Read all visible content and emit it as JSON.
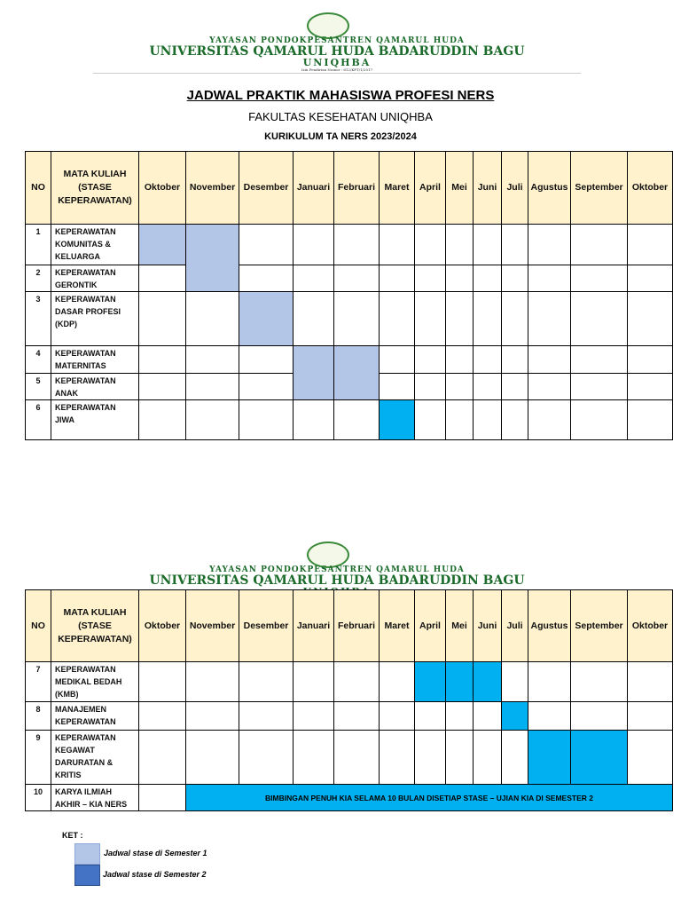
{
  "letterhead": {
    "foundation": "YAYASAN PONDOKPESANTREN QAMARUL HUDA",
    "university": "UNIVERSITAS QAMARUL HUDA BADARUDDIN BAGU",
    "short": "UNIQHBA",
    "permit": "Izin Pendirian Nomor : 612/KPT/1/2017"
  },
  "title": "JADWAL PRAKTIK MAHASISWA PROFESI NERS",
  "subtitle": "FAKULTAS KESEHATAN UNIQHBA",
  "curriculum": "KURIKULUM TA NERS 2023/2024",
  "colors": {
    "semester1": "#b4c6e7",
    "semester2": "#00b0f0",
    "legend_semester2": "#4472c4",
    "header_bg": "#fff2cc"
  },
  "table": {
    "headers": [
      "NO",
      "MATA KULIAH (STASE KEPERAWATAN)",
      "Oktober",
      "November",
      "Desember",
      "Januari",
      "Februari",
      "Maret",
      "April",
      "Mei",
      "Juni",
      "Juli",
      "Agustus",
      "September",
      "Oktober"
    ],
    "rows": [
      {
        "no": "1",
        "name": "KEPERAWATAN KOMUNITAS & KELUARGA",
        "months": [
          0,
          1
        ],
        "semester": 1
      },
      {
        "no": "2",
        "name": "KEPERAWATAN GERONTIK",
        "months": [
          1
        ],
        "semester": 1
      },
      {
        "no": "3",
        "name": "KEPERAWATAN DASAR PROFESI (KDP)",
        "months": [
          2
        ],
        "semester": 1
      },
      {
        "no": "4",
        "name": "KEPERAWATAN MATERNITAS",
        "months": [
          3,
          4
        ],
        "semester": 1
      },
      {
        "no": "5",
        "name": "KEPERAWATAN ANAK",
        "months": [
          3,
          4
        ],
        "semester": 1
      },
      {
        "no": "6",
        "name": "KEPERAWATAN JIWA",
        "months": [
          5
        ],
        "semester": 2
      },
      {
        "no": "7",
        "name": "KEPERAWATAN MEDIKAL BEDAH (KMB)",
        "months": [
          6,
          7,
          8
        ],
        "semester": 2
      },
      {
        "no": "8",
        "name": "MANAJEMEN KEPERAWATAN",
        "months": [
          9
        ],
        "semester": 2
      },
      {
        "no": "9",
        "name": "KEPERAWATAN KEGAWAT DARURATAN & KRITIS",
        "months": [
          10,
          11
        ],
        "semester": 2
      },
      {
        "no": "10",
        "name": "KARYA ILMIAH AKHIR – KIA NERS",
        "banner": "BIMBINGAN PENUH KIA SELAMA 10 BULAN DISETIAP STASE – UJIAN KIA DI SEMESTER 2",
        "banner_from": 1,
        "banner_to": 12,
        "semester": 2
      }
    ]
  },
  "legend": {
    "title": "KET :",
    "items": [
      "Jadwal stase di Semester 1",
      "Jadwal stase di Semester 2"
    ]
  }
}
